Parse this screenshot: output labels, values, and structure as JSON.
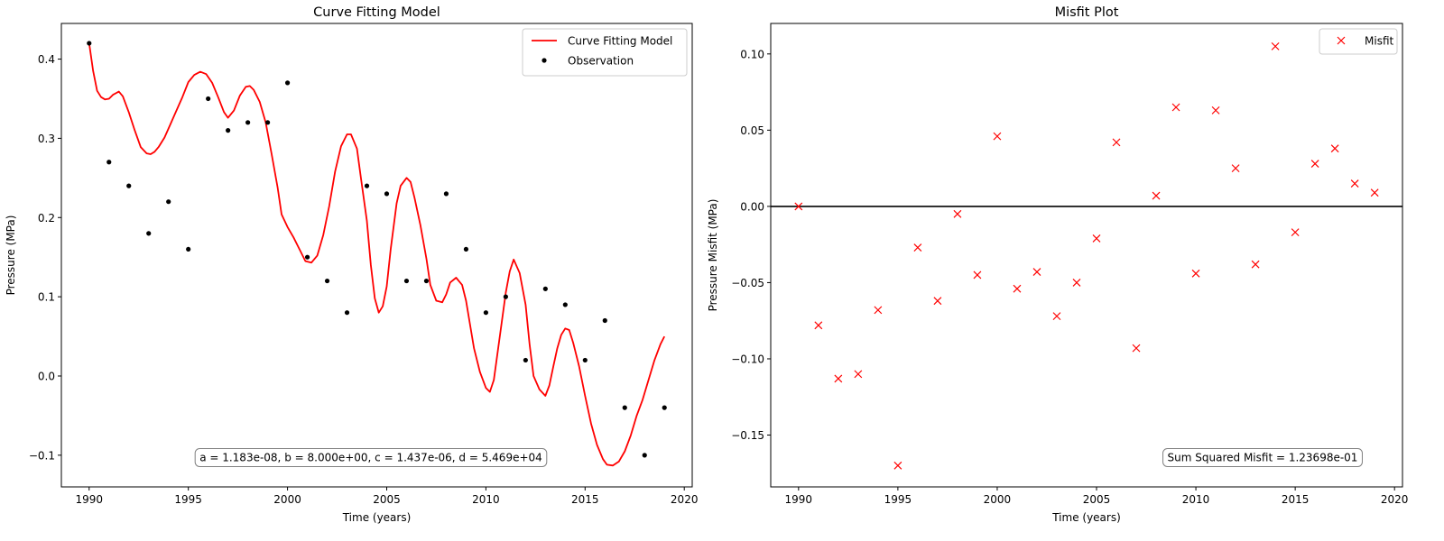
{
  "chart_data": [
    {
      "type": "line",
      "title": "Curve Fitting Model",
      "xlabel": "Time (years)",
      "ylabel": "Pressure (MPa)",
      "xlim": [
        1988.6,
        2020.4
      ],
      "ylim": [
        -0.14,
        0.445
      ],
      "xticks": [
        1990,
        1995,
        2000,
        2005,
        2010,
        2015,
        2020
      ],
      "yticks": [
        -0.1,
        0.0,
        0.1,
        0.2,
        0.3,
        0.4
      ],
      "ytick_labels": [
        "−0.1",
        "0.0",
        "0.1",
        "0.2",
        "0.3",
        "0.4"
      ],
      "legend_position": "top-right",
      "annotation": "a = 1.183e-08, b = 8.000e+00, c = 1.437e-06, d = 5.469e+04",
      "series": [
        {
          "name": "Curve Fitting Model",
          "kind": "line",
          "color": "#ff0000",
          "x": [
            1990.0,
            1990.2,
            1990.4,
            1990.6,
            1990.8,
            1991.0,
            1991.2,
            1991.5,
            1991.7,
            1992.0,
            1992.3,
            1992.6,
            1992.9,
            1993.1,
            1993.3,
            1993.5,
            1993.8,
            1994.1,
            1994.4,
            1994.7,
            1995.0,
            1995.3,
            1995.6,
            1995.9,
            1996.2,
            1996.5,
            1996.8,
            1997.0,
            1997.3,
            1997.6,
            1997.9,
            1998.1,
            1998.3,
            1998.6,
            1998.9,
            1999.2,
            1999.5,
            1999.7,
            2000.0,
            2000.3,
            2000.6,
            2000.9,
            2001.2,
            2001.5,
            2001.8,
            2002.1,
            2002.4,
            2002.7,
            2003.0,
            2003.2,
            2003.5,
            2003.7,
            2004.0,
            2004.2,
            2004.4,
            2004.6,
            2004.8,
            2005.0,
            2005.2,
            2005.5,
            2005.7,
            2006.0,
            2006.2,
            2006.4,
            2006.7,
            2007.0,
            2007.2,
            2007.5,
            2007.8,
            2008.0,
            2008.2,
            2008.5,
            2008.8,
            2009.0,
            2009.2,
            2009.4,
            2009.7,
            2010.0,
            2010.2,
            2010.4,
            2010.7,
            2011.0,
            2011.2,
            2011.4,
            2011.7,
            2012.0,
            2012.2,
            2012.4,
            2012.7,
            2013.0,
            2013.2,
            2013.4,
            2013.6,
            2013.8,
            2014.0,
            2014.2,
            2014.4,
            2014.7,
            2015.0,
            2015.3,
            2015.6,
            2015.9,
            2016.1,
            2016.4,
            2016.7,
            2017.0,
            2017.3,
            2017.6,
            2017.9,
            2018.2,
            2018.5,
            2018.8,
            2019.0
          ],
          "y": [
            0.42,
            0.385,
            0.36,
            0.352,
            0.349,
            0.35,
            0.355,
            0.359,
            0.353,
            0.333,
            0.31,
            0.289,
            0.281,
            0.28,
            0.283,
            0.289,
            0.301,
            0.318,
            0.335,
            0.352,
            0.371,
            0.38,
            0.384,
            0.381,
            0.37,
            0.352,
            0.333,
            0.326,
            0.335,
            0.354,
            0.365,
            0.366,
            0.361,
            0.346,
            0.32,
            0.28,
            0.238,
            0.204,
            0.188,
            0.175,
            0.16,
            0.145,
            0.143,
            0.152,
            0.178,
            0.214,
            0.258,
            0.29,
            0.305,
            0.305,
            0.287,
            0.25,
            0.196,
            0.14,
            0.098,
            0.08,
            0.088,
            0.113,
            0.16,
            0.218,
            0.24,
            0.25,
            0.245,
            0.225,
            0.19,
            0.148,
            0.115,
            0.095,
            0.093,
            0.103,
            0.118,
            0.124,
            0.115,
            0.095,
            0.065,
            0.035,
            0.005,
            -0.015,
            -0.02,
            -0.005,
            0.05,
            0.105,
            0.132,
            0.147,
            0.13,
            0.09,
            0.04,
            0.0,
            -0.017,
            -0.025,
            -0.012,
            0.012,
            0.035,
            0.052,
            0.06,
            0.058,
            0.042,
            0.012,
            -0.025,
            -0.06,
            -0.087,
            -0.105,
            -0.112,
            -0.113,
            -0.108,
            -0.095,
            -0.075,
            -0.05,
            -0.03,
            -0.005,
            0.02,
            0.04,
            0.05
          ]
        },
        {
          "name": "Observation",
          "kind": "points",
          "color": "#000000",
          "x": [
            1990,
            1991,
            1992,
            1993,
            1994,
            1995,
            1996,
            1997,
            1998,
            1999,
            2000,
            2001,
            2002,
            2003,
            2004,
            2005,
            2006,
            2007,
            2008,
            2009,
            2010,
            2011,
            2012,
            2013,
            2014,
            2015,
            2016,
            2017,
            2018,
            2019
          ],
          "y": [
            0.42,
            0.27,
            0.24,
            0.18,
            0.22,
            0.16,
            0.35,
            0.31,
            0.32,
            0.32,
            0.37,
            0.15,
            0.12,
            0.08,
            0.24,
            0.23,
            0.12,
            0.12,
            0.23,
            0.16,
            0.08,
            0.1,
            0.02,
            0.11,
            0.09,
            0.02,
            0.07,
            -0.04,
            -0.1,
            -0.04
          ]
        }
      ]
    },
    {
      "type": "scatter",
      "title": "Misfit Plot",
      "xlabel": "Time (years)",
      "ylabel": "Pressure Misfit (MPa)",
      "xlim": [
        1988.6,
        2020.4
      ],
      "ylim": [
        -0.184,
        0.12
      ],
      "xticks": [
        1990,
        1995,
        2000,
        2005,
        2010,
        2015,
        2020
      ],
      "yticks": [
        -0.15,
        -0.1,
        -0.05,
        0.0,
        0.05,
        0.1
      ],
      "ytick_labels": [
        "−0.15",
        "−0.10",
        "−0.05",
        "0.00",
        "0.05",
        "0.10"
      ],
      "zero_line": 0.0,
      "legend_position": "top-right",
      "annotation": "Sum Squared Misfit = 1.23698e-01",
      "series": [
        {
          "name": "Misfit",
          "kind": "x-markers",
          "color": "#ff0000",
          "x": [
            1990,
            1991,
            1992,
            1993,
            1994,
            1995,
            1996,
            1997,
            1998,
            1999,
            2000,
            2001,
            2002,
            2003,
            2004,
            2005,
            2006,
            2007,
            2008,
            2009,
            2010,
            2011,
            2012,
            2013,
            2014,
            2015,
            2016,
            2017,
            2018,
            2019
          ],
          "y": [
            0.0,
            -0.078,
            -0.113,
            -0.11,
            -0.068,
            -0.17,
            -0.027,
            -0.062,
            -0.005,
            -0.045,
            0.046,
            -0.054,
            -0.043,
            -0.072,
            -0.05,
            -0.021,
            0.042,
            -0.093,
            0.007,
            0.065,
            -0.044,
            0.063,
            0.025,
            -0.038,
            0.105,
            -0.017,
            0.028,
            0.038,
            0.015,
            0.009
          ]
        }
      ]
    }
  ]
}
